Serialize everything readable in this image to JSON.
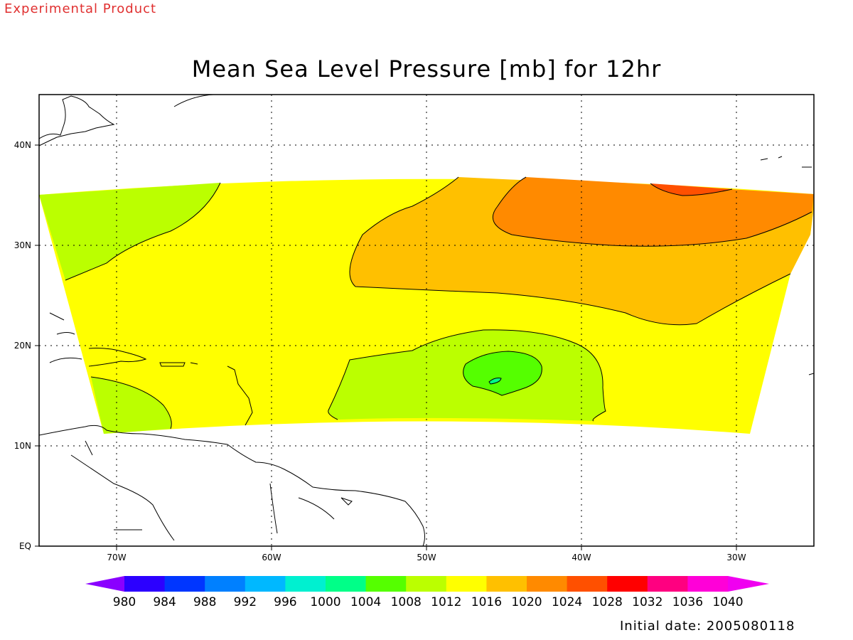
{
  "banner": {
    "text": "Experimental Product",
    "color": "#e03030"
  },
  "title": "Mean Sea Level Pressure [mb] for 12hr",
  "initial_date": "Initial date: 2005080118",
  "map": {
    "lon_range": [
      -75,
      -25
    ],
    "lat_range": [
      0,
      45
    ],
    "lon_ticks": [
      "70W",
      "60W",
      "50W",
      "40W",
      "30W"
    ],
    "lat_ticks": [
      "40N",
      "30N",
      "20N",
      "10N",
      "EQ"
    ],
    "gridlines": "dotted"
  },
  "colorbar": {
    "levels": [
      "980",
      "984",
      "988",
      "992",
      "996",
      "1000",
      "1004",
      "1008",
      "1012",
      "1016",
      "1020",
      "1024",
      "1028",
      "1032",
      "1036",
      "1040"
    ],
    "colors": [
      "#8a00ff",
      "#2c00ff",
      "#0036ff",
      "#0080ff",
      "#00b8ff",
      "#00f0d0",
      "#00ff88",
      "#55ff00",
      "#bbff00",
      "#ffff00",
      "#ffc000",
      "#ff8a00",
      "#ff5000",
      "#ff0000",
      "#ff0080",
      "#ff00d8",
      "#f000f0"
    ]
  },
  "fields": {
    "fill_1012": "#bbff00",
    "fill_1016": "#ffff00",
    "fill_1020": "#ffc000",
    "fill_1024": "#ff8a00",
    "fill_1028": "#ff5000",
    "fill_1008": "#55ff00",
    "fill_1004": "#00ff88"
  }
}
